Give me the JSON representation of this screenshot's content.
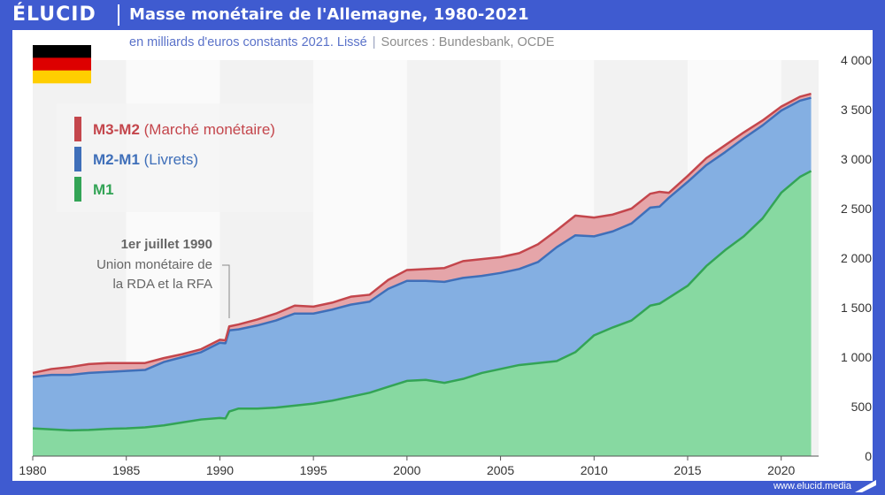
{
  "header": {
    "logo": "ÉLUCID",
    "title": "Masse monétaire de l'Allemagne, 1980-2021",
    "subtitle": "en milliards d'euros constants 2021. Lissé",
    "sources": "Sources : Bundesbank, OCDE"
  },
  "footer": {
    "url": "www.elucid.media"
  },
  "flag": {
    "country": "Germany",
    "colors": [
      "#000000",
      "#dd0000",
      "#ffce00"
    ]
  },
  "annotation": {
    "date": "1er juillet 1990",
    "line1": "Union monétaire de",
    "line2": "la RDA et la RFA",
    "x": 1990.5
  },
  "chart_data": {
    "type": "area",
    "stacked": true,
    "x_range": [
      1980,
      2022
    ],
    "ylim": [
      0,
      4000
    ],
    "xticks": [
      1980,
      1985,
      1990,
      1995,
      2000,
      2005,
      2010,
      2015,
      2020
    ],
    "yticks": [
      0,
      500,
      1000,
      1500,
      2000,
      2500,
      3000,
      3500,
      4000
    ],
    "ytick_labels": [
      "0",
      "500",
      "1 000",
      "1 500",
      "2 000",
      "2 500",
      "3 000",
      "3 500",
      "4 000"
    ],
    "legend_position": "top-left",
    "grid": "alternating vertical bands",
    "series": [
      {
        "name": "M1",
        "label_bold": "M1",
        "label_rest": "",
        "color": "#87d9a1",
        "legend_color": "#33a456",
        "points": [
          [
            1980,
            280
          ],
          [
            1981,
            270
          ],
          [
            1982,
            260
          ],
          [
            1983,
            265
          ],
          [
            1984,
            275
          ],
          [
            1985,
            280
          ],
          [
            1986,
            290
          ],
          [
            1987,
            310
          ],
          [
            1988,
            340
          ],
          [
            1989,
            370
          ],
          [
            1990,
            385
          ],
          [
            1990.3,
            380
          ],
          [
            1990.5,
            450
          ],
          [
            1991,
            480
          ],
          [
            1992,
            480
          ],
          [
            1993,
            490
          ],
          [
            1994,
            510
          ],
          [
            1995,
            530
          ],
          [
            1996,
            560
          ],
          [
            1997,
            600
          ],
          [
            1998,
            640
          ],
          [
            1999,
            700
          ],
          [
            2000,
            760
          ],
          [
            2001,
            770
          ],
          [
            2002,
            740
          ],
          [
            2003,
            780
          ],
          [
            2004,
            840
          ],
          [
            2005,
            880
          ],
          [
            2006,
            920
          ],
          [
            2007,
            940
          ],
          [
            2008,
            960
          ],
          [
            2009,
            1050
          ],
          [
            2010,
            1220
          ],
          [
            2011,
            1300
          ],
          [
            2012,
            1370
          ],
          [
            2013,
            1520
          ],
          [
            2013.5,
            1540
          ],
          [
            2014,
            1600
          ],
          [
            2015,
            1720
          ],
          [
            2016,
            1920
          ],
          [
            2017,
            2080
          ],
          [
            2018,
            2220
          ],
          [
            2019,
            2400
          ],
          [
            2020,
            2660
          ],
          [
            2021,
            2820
          ],
          [
            2021.6,
            2880
          ]
        ]
      },
      {
        "name": "M2-M1 (Livrets)",
        "label_bold": "M2-M1",
        "label_rest": " (Livrets)",
        "color": "#84afe2",
        "legend_color": "#3f6fb9",
        "points": [
          [
            1980,
            520
          ],
          [
            1981,
            550
          ],
          [
            1982,
            560
          ],
          [
            1983,
            575
          ],
          [
            1984,
            575
          ],
          [
            1985,
            580
          ],
          [
            1986,
            580
          ],
          [
            1987,
            640
          ],
          [
            1988,
            660
          ],
          [
            1989,
            680
          ],
          [
            1990,
            760
          ],
          [
            1990.3,
            760
          ],
          [
            1990.5,
            820
          ],
          [
            1991,
            800
          ],
          [
            1992,
            840
          ],
          [
            1993,
            880
          ],
          [
            1994,
            930
          ],
          [
            1995,
            910
          ],
          [
            1996,
            920
          ],
          [
            1997,
            930
          ],
          [
            1998,
            920
          ],
          [
            1999,
            990
          ],
          [
            2000,
            1010
          ],
          [
            2001,
            1000
          ],
          [
            2002,
            1020
          ],
          [
            2003,
            1020
          ],
          [
            2004,
            980
          ],
          [
            2005,
            970
          ],
          [
            2006,
            970
          ],
          [
            2007,
            1020
          ],
          [
            2008,
            1150
          ],
          [
            2009,
            1180
          ],
          [
            2010,
            1000
          ],
          [
            2011,
            970
          ],
          [
            2012,
            980
          ],
          [
            2013,
            990
          ],
          [
            2013.5,
            980
          ],
          [
            2014,
            1010
          ],
          [
            2015,
            1050
          ],
          [
            2016,
            1020
          ],
          [
            2017,
            990
          ],
          [
            2018,
            990
          ],
          [
            2019,
            940
          ],
          [
            2020,
            830
          ],
          [
            2021,
            770
          ],
          [
            2021.6,
            740
          ]
        ]
      },
      {
        "name": "M3-M2 (Marché monétaire)",
        "label_bold": "M3-M2",
        "label_rest": " (Marché monétaire)",
        "color": "#e5a5a9",
        "legend_color": "#c4464c",
        "points": [
          [
            1980,
            40
          ],
          [
            1981,
            60
          ],
          [
            1982,
            80
          ],
          [
            1983,
            90
          ],
          [
            1984,
            90
          ],
          [
            1985,
            80
          ],
          [
            1986,
            70
          ],
          [
            1987,
            40
          ],
          [
            1988,
            30
          ],
          [
            1989,
            30
          ],
          [
            1990,
            30
          ],
          [
            1990.3,
            30
          ],
          [
            1990.5,
            40
          ],
          [
            1991,
            50
          ],
          [
            1992,
            60
          ],
          [
            1993,
            70
          ],
          [
            1994,
            80
          ],
          [
            1995,
            70
          ],
          [
            1996,
            70
          ],
          [
            1997,
            80
          ],
          [
            1998,
            70
          ],
          [
            1999,
            90
          ],
          [
            2000,
            110
          ],
          [
            2001,
            120
          ],
          [
            2002,
            140
          ],
          [
            2003,
            170
          ],
          [
            2004,
            170
          ],
          [
            2005,
            160
          ],
          [
            2006,
            160
          ],
          [
            2007,
            180
          ],
          [
            2008,
            170
          ],
          [
            2009,
            200
          ],
          [
            2010,
            190
          ],
          [
            2011,
            170
          ],
          [
            2012,
            150
          ],
          [
            2013,
            140
          ],
          [
            2013.5,
            150
          ],
          [
            2014,
            50
          ],
          [
            2015,
            60
          ],
          [
            2016,
            70
          ],
          [
            2017,
            70
          ],
          [
            2018,
            60
          ],
          [
            2019,
            50
          ],
          [
            2020,
            40
          ],
          [
            2021,
            40
          ],
          [
            2021.6,
            40
          ]
        ]
      }
    ]
  }
}
